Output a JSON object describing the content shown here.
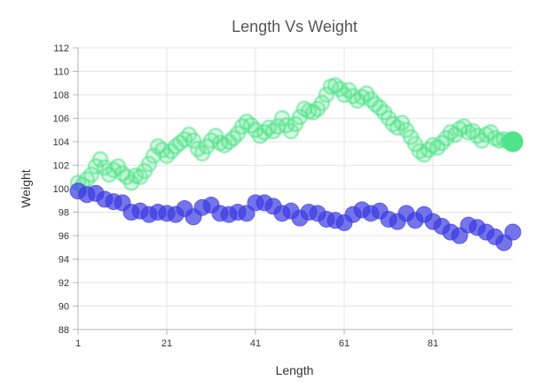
{
  "chart_data": {
    "type": "scatter",
    "title": "Length Vs Weight",
    "xlabel": "Length",
    "ylabel": "Weight",
    "xlim": [
      1,
      99
    ],
    "ylim": [
      88,
      112
    ],
    "x_ticks": [
      1,
      21,
      41,
      61,
      81
    ],
    "y_ticks": [
      88,
      90,
      92,
      94,
      96,
      98,
      100,
      102,
      104,
      106,
      108,
      110,
      112
    ],
    "grid": true,
    "legend": "none",
    "series": [
      {
        "color": "#50e38a",
        "marker": "circle-ring",
        "x": [
          1,
          2,
          3,
          4,
          5,
          6,
          7,
          8,
          9,
          10,
          11,
          12,
          13,
          14,
          15,
          16,
          17,
          18,
          19,
          20,
          21,
          22,
          23,
          24,
          25,
          26,
          27,
          28,
          29,
          30,
          31,
          32,
          33,
          34,
          35,
          36,
          37,
          38,
          39,
          40,
          41,
          42,
          43,
          44,
          45,
          46,
          47,
          48,
          49,
          50,
          51,
          52,
          53,
          54,
          55,
          56,
          57,
          58,
          59,
          60,
          61,
          62,
          63,
          64,
          65,
          66,
          67,
          68,
          69,
          70,
          71,
          72,
          73,
          74,
          75,
          76,
          77,
          78,
          79,
          80,
          81,
          82,
          83,
          84,
          85,
          86,
          87,
          88,
          89,
          90,
          91,
          92,
          93,
          94,
          95,
          96,
          97,
          98,
          99
        ],
        "y": [
          100.5,
          100.3,
          100.8,
          101.2,
          101.9,
          102.5,
          101.8,
          101.2,
          101.6,
          101.9,
          101.3,
          101.0,
          100.5,
          101.1,
          101.0,
          101.5,
          102.1,
          102.8,
          103.6,
          103.3,
          102.8,
          103.2,
          103.6,
          103.9,
          104.2,
          104.6,
          104.1,
          103.4,
          103.0,
          103.6,
          104.1,
          104.5,
          103.9,
          103.7,
          104.0,
          104.3,
          104.7,
          105.3,
          105.7,
          105.4,
          105.0,
          104.5,
          104.8,
          105.2,
          104.9,
          105.3,
          106.0,
          105.4,
          104.9,
          105.5,
          106.1,
          106.8,
          106.6,
          106.5,
          106.8,
          107.3,
          108.0,
          108.7,
          108.8,
          108.5,
          108.0,
          108.4,
          107.9,
          107.5,
          107.8,
          108.1,
          107.6,
          107.2,
          106.9,
          106.5,
          106.0,
          105.5,
          105.2,
          105.6,
          105.0,
          104.4,
          103.8,
          103.2,
          102.9,
          103.3,
          103.7,
          103.5,
          103.9,
          104.3,
          104.8,
          104.6,
          105.1,
          105.3,
          104.8,
          104.9,
          104.5,
          104.1,
          104.6,
          104.8,
          104.3,
          104.1,
          104.2,
          104.0,
          104.0
        ]
      },
      {
        "color": "#3a3ae3",
        "marker": "circle",
        "x": [
          1,
          3,
          5,
          7,
          9,
          11,
          13,
          15,
          17,
          19,
          21,
          23,
          25,
          27,
          29,
          31,
          33,
          35,
          37,
          39,
          41,
          43,
          45,
          47,
          49,
          51,
          53,
          55,
          57,
          59,
          61,
          63,
          65,
          67,
          69,
          71,
          73,
          75,
          77,
          79,
          81,
          83,
          85,
          87,
          89,
          91,
          93,
          95,
          97,
          99
        ],
        "y": [
          99.8,
          99.5,
          99.6,
          99.1,
          98.9,
          98.8,
          98.0,
          98.1,
          97.8,
          98.0,
          97.9,
          97.8,
          98.3,
          97.6,
          98.4,
          98.6,
          97.9,
          97.8,
          98.0,
          97.9,
          98.8,
          98.8,
          98.5,
          97.9,
          98.1,
          97.5,
          98.0,
          97.9,
          97.4,
          97.3,
          97.1,
          97.8,
          98.2,
          97.9,
          98.1,
          97.4,
          97.2,
          97.9,
          97.3,
          97.8,
          97.2,
          96.8,
          96.3,
          96.0,
          96.9,
          96.7,
          96.3,
          95.9,
          95.4,
          96.3
        ]
      }
    ]
  }
}
